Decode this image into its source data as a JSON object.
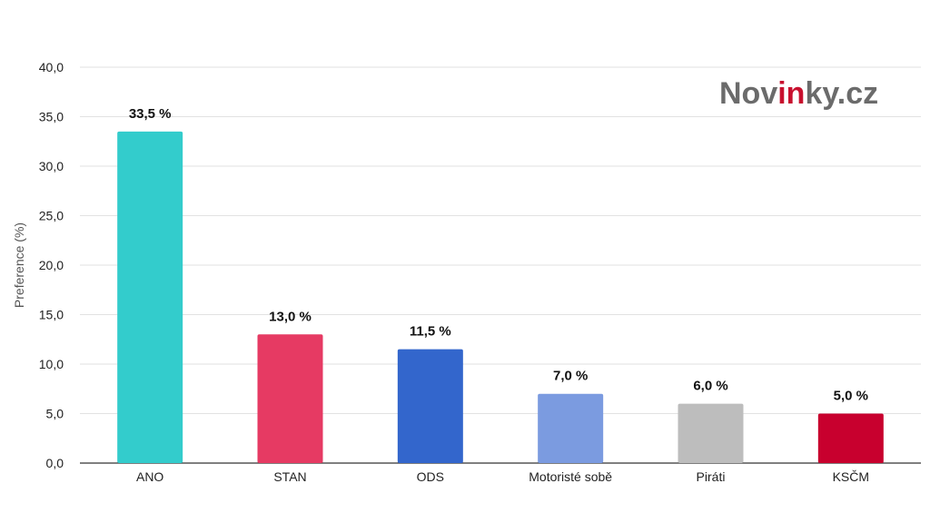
{
  "brand": {
    "logo_parts": [
      "Nov",
      "in",
      "ky.cz"
    ],
    "colors": {
      "text": "#6b6b6b",
      "accent": "#c8102e"
    }
  },
  "chart_data": {
    "type": "bar",
    "title": "",
    "xlabel": "",
    "ylabel": "Preference (%)",
    "ylim": [
      0,
      40
    ],
    "yticks": [
      "0,0",
      "5,0",
      "10,0",
      "15,0",
      "20,0",
      "25,0",
      "30,0",
      "35,0",
      "40,0"
    ],
    "ytick_values": [
      0,
      5,
      10,
      15,
      20,
      25,
      30,
      35,
      40
    ],
    "grid": true,
    "categories": [
      "ANO",
      "STAN",
      "ODS",
      "Motoristé sobě",
      "Piráti",
      "KSČM"
    ],
    "values": [
      33.5,
      13.0,
      11.5,
      7.0,
      6.0,
      5.0
    ],
    "data_labels": [
      "33,5 %",
      "13,0 %",
      "11,5 %",
      "7,0 %",
      "6,0 %",
      "5,0 %"
    ],
    "colors": [
      "#33cccc",
      "#e63a63",
      "#3366cc",
      "#7b9be0",
      "#bdbdbd",
      "#c8002e"
    ]
  }
}
